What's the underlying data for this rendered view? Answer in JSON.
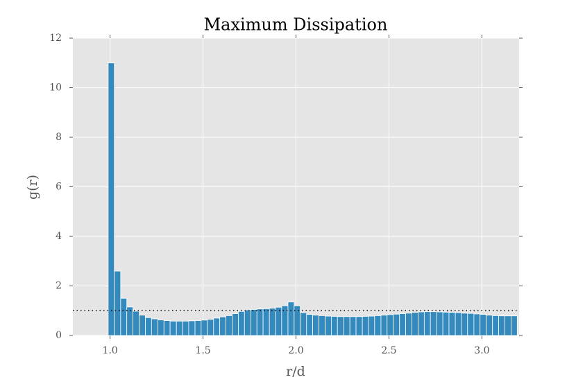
{
  "chart_data": {
    "type": "histogram",
    "title": "Maximum Dissipation",
    "x_label": "r/d",
    "y_label": "g(r)",
    "bins": [
      0.99,
      1.023,
      1.057,
      1.09,
      1.123,
      1.157,
      1.19,
      1.223,
      1.257,
      1.29,
      1.323,
      1.357,
      1.39,
      1.423,
      1.457,
      1.49,
      1.523,
      1.557,
      1.59,
      1.623,
      1.657,
      1.69,
      1.723,
      1.757,
      1.79,
      1.823,
      1.857,
      1.89,
      1.923,
      1.957,
      1.99,
      2.023,
      2.057,
      2.09,
      2.123,
      2.157,
      2.19,
      2.223,
      2.257,
      2.29,
      2.323,
      2.357,
      2.39,
      2.423,
      2.457,
      2.49,
      2.523,
      2.557,
      2.59,
      2.623,
      2.657,
      2.69,
      2.723,
      2.757,
      2.79,
      2.823,
      2.857,
      2.89,
      2.923,
      2.957,
      2.99,
      3.023,
      3.057,
      3.09,
      3.123,
      3.157,
      3.19
    ],
    "values": [
      11.0,
      2.6,
      1.5,
      1.15,
      0.98,
      0.82,
      0.72,
      0.67,
      0.63,
      0.6,
      0.58,
      0.58,
      0.58,
      0.59,
      0.6,
      0.62,
      0.65,
      0.7,
      0.75,
      0.8,
      0.88,
      0.97,
      1.03,
      1.05,
      1.07,
      1.08,
      1.1,
      1.14,
      1.2,
      1.35,
      1.2,
      0.92,
      0.85,
      0.82,
      0.8,
      0.78,
      0.77,
      0.76,
      0.76,
      0.76,
      0.76,
      0.77,
      0.78,
      0.8,
      0.82,
      0.84,
      0.86,
      0.88,
      0.9,
      0.93,
      0.95,
      0.96,
      0.96,
      0.95,
      0.94,
      0.93,
      0.92,
      0.9,
      0.89,
      0.87,
      0.85,
      0.82,
      0.8,
      0.79,
      0.79,
      0.79
    ],
    "color": "#348abd",
    "hline": 1,
    "xlim": [
      0.8,
      3.2
    ],
    "ylim": [
      0,
      12
    ],
    "xticks": [
      {
        "value": 1,
        "label": "1.0"
      },
      1.5,
      {
        "value": 2,
        "label": "2.0"
      },
      2.5,
      {
        "value": 3,
        "label": "3.0"
      }
    ],
    "yticks": [
      0,
      2,
      4,
      6,
      8,
      10,
      12
    ],
    "grid": true
  }
}
